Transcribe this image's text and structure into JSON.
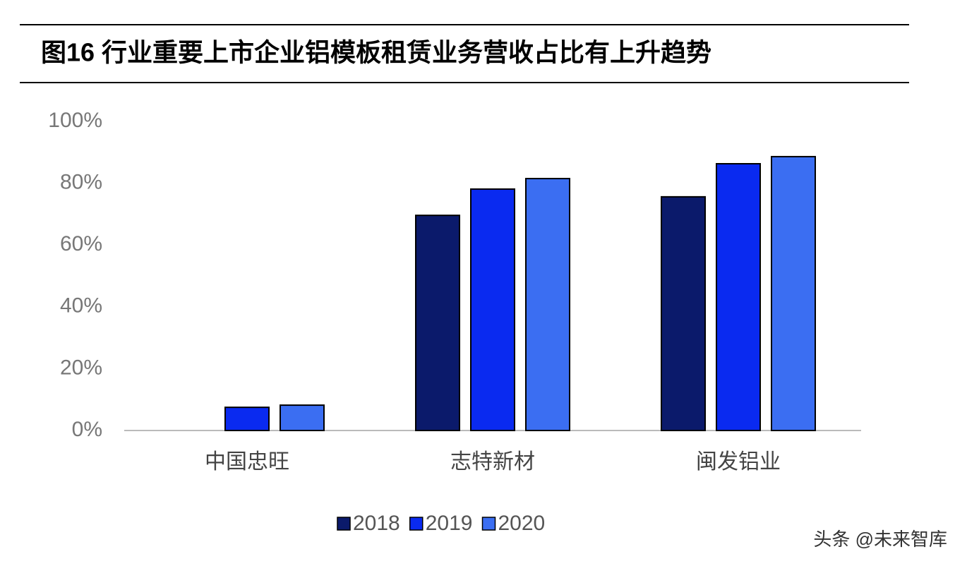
{
  "chart_data": {
    "type": "bar",
    "title": "图16 行业重要上市企业铝模板租赁业务营收占比有上升趋势",
    "categories": [
      "中国忠旺",
      "志特新材",
      "闽发铝业"
    ],
    "series": [
      {
        "name": "2018",
        "color": "#0b1a6b",
        "values": [
          null,
          69.6,
          75.6
        ]
      },
      {
        "name": "2019",
        "color": "#0a2af0",
        "values": [
          7.5,
          78.1,
          86.3
        ]
      },
      {
        "name": "2020",
        "color": "#3b6ef2",
        "values": [
          8.2,
          81.5,
          88.6
        ]
      }
    ],
    "ylim": [
      0,
      100
    ],
    "yticks": [
      {
        "value": 0,
        "label": "0%"
      },
      {
        "value": 20,
        "label": "20%"
      },
      {
        "value": 40,
        "label": "40%"
      },
      {
        "value": 60,
        "label": "60%"
      },
      {
        "value": 80,
        "label": "80%"
      },
      {
        "value": 100,
        "label": "100%"
      }
    ],
    "legend": "bottom",
    "watermark": "头条 @未来智库"
  }
}
